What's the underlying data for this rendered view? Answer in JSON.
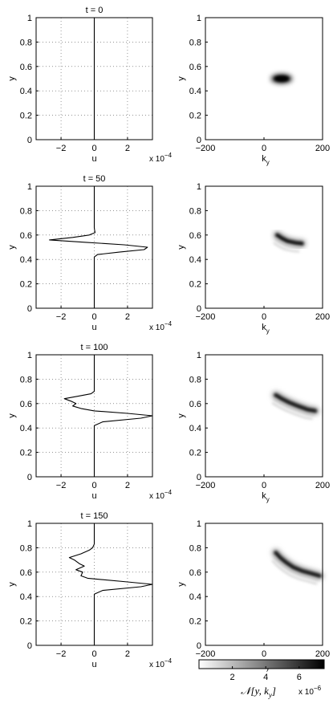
{
  "chart_data": {
    "type": "line",
    "panels": [
      {
        "title": "t = 0",
        "profile": {
          "type": "line",
          "xlabel": "u",
          "ylabel": "y",
          "x_multiplier": "x 10^-4",
          "xlim": [
            -3.5,
            3.5
          ],
          "ylim": [
            0,
            1
          ],
          "grid": true,
          "xticks": [
            -2,
            0,
            2
          ],
          "yticks": [
            0,
            0.2,
            0.4,
            0.6,
            0.8,
            1
          ],
          "y": [
            0,
            0.1,
            0.2,
            0.3,
            0.4,
            0.5,
            0.6,
            0.7,
            0.8,
            0.9,
            1.0
          ],
          "x": [
            0,
            0,
            0,
            0,
            0,
            0,
            0,
            0,
            0,
            0,
            0
          ]
        },
        "action": {
          "type": "heatmap",
          "xlabel": "k_y",
          "ylabel": "y",
          "xlim": [
            -200,
            200
          ],
          "ylim": [
            0,
            1
          ],
          "xticks": [
            -200,
            0,
            200
          ],
          "yticks": [
            0,
            0.2,
            0.4,
            0.6,
            0.8,
            1
          ],
          "ridge_points": [
            [
              45,
              0.5
            ],
            [
              60,
              0.5
            ],
            [
              75,
              0.5
            ]
          ],
          "peak_level": 1.0
        }
      },
      {
        "title": "t = 50",
        "profile": {
          "type": "line",
          "xlabel": "u",
          "ylabel": "y",
          "x_multiplier": "x 10^-4",
          "xlim": [
            -3.5,
            3.5
          ],
          "ylim": [
            0,
            1
          ],
          "grid": true,
          "xticks": [
            -2,
            0,
            2
          ],
          "yticks": [
            0,
            0.2,
            0.4,
            0.6,
            0.8,
            1
          ],
          "y": [
            0,
            0.42,
            0.44,
            0.46,
            0.48,
            0.5,
            0.52,
            0.54,
            0.56,
            0.58,
            0.6,
            0.62,
            0.64,
            0.66,
            1.0
          ],
          "x": [
            0,
            0,
            0.2,
            1.5,
            3.0,
            3.2,
            1.8,
            -0.5,
            -2.7,
            -1.3,
            -0.3,
            0.05,
            0.02,
            0,
            0
          ]
        },
        "action": {
          "type": "heatmap",
          "xlabel": "k_y",
          "ylabel": "y",
          "xlim": [
            -200,
            200
          ],
          "ylim": [
            0,
            1
          ],
          "xticks": [
            -200,
            0,
            200
          ],
          "yticks": [
            0,
            0.2,
            0.4,
            0.6,
            0.8,
            1
          ],
          "ridge_points": [
            [
              45,
              0.6
            ],
            [
              60,
              0.575
            ],
            [
              80,
              0.55
            ],
            [
              110,
              0.535
            ],
            [
              130,
              0.53
            ]
          ],
          "peak_level": 0.9
        }
      },
      {
        "title": "t = 100",
        "profile": {
          "type": "line",
          "xlabel": "u",
          "ylabel": "y",
          "x_multiplier": "x 10^-4",
          "xlim": [
            -3.5,
            3.5
          ],
          "ylim": [
            0,
            1
          ],
          "grid": true,
          "xticks": [
            -2,
            0,
            2
          ],
          "yticks": [
            0,
            0.2,
            0.4,
            0.6,
            0.8,
            1
          ],
          "y": [
            0,
            0.42,
            0.45,
            0.48,
            0.5,
            0.52,
            0.54,
            0.56,
            0.58,
            0.6,
            0.62,
            0.64,
            0.66,
            0.68,
            0.7,
            1.0
          ],
          "x": [
            0,
            0,
            0.5,
            2.8,
            3.5,
            2.0,
            0,
            -0.8,
            -1.3,
            -1.1,
            -1.4,
            -1.8,
            -1.0,
            -0.2,
            0,
            0
          ]
        },
        "action": {
          "type": "heatmap",
          "xlabel": "k_y",
          "ylabel": "y",
          "xlim": [
            -200,
            200
          ],
          "ylim": [
            0,
            1
          ],
          "xticks": [
            -200,
            0,
            200
          ],
          "yticks": [
            0,
            0.2,
            0.4,
            0.6,
            0.8,
            1
          ],
          "ridge_points": [
            [
              40,
              0.67
            ],
            [
              60,
              0.64
            ],
            [
              85,
              0.61
            ],
            [
              115,
              0.58
            ],
            [
              150,
              0.55
            ],
            [
              175,
              0.54
            ]
          ],
          "peak_level": 0.85
        }
      },
      {
        "title": "t = 150",
        "profile": {
          "type": "line",
          "xlabel": "u",
          "ylabel": "y",
          "x_multiplier": "x 10^-4",
          "xlim": [
            -3.5,
            3.5
          ],
          "ylim": [
            0,
            1
          ],
          "grid": true,
          "xticks": [
            -2,
            0,
            2
          ],
          "yticks": [
            0,
            0.2,
            0.4,
            0.6,
            0.8,
            1
          ],
          "y": [
            0,
            0.42,
            0.45,
            0.48,
            0.5,
            0.52,
            0.55,
            0.57,
            0.6,
            0.62,
            0.65,
            0.67,
            0.7,
            0.72,
            0.75,
            0.78,
            0.8,
            0.83,
            1.0
          ],
          "x": [
            0,
            0,
            0.5,
            2.8,
            3.5,
            2.0,
            -0.4,
            -0.8,
            -0.7,
            -1.1,
            -0.6,
            -0.9,
            -1.2,
            -1.5,
            -0.8,
            -0.3,
            -0.1,
            0,
            0
          ]
        },
        "action": {
          "type": "heatmap",
          "xlabel": "k_y",
          "ylabel": "y",
          "xlim": [
            -200,
            200
          ],
          "ylim": [
            0,
            1
          ],
          "xticks": [
            -200,
            0,
            200
          ],
          "yticks": [
            0,
            0.2,
            0.4,
            0.6,
            0.8,
            1
          ],
          "ridge_points": [
            [
              40,
              0.76
            ],
            [
              55,
              0.72
            ],
            [
              75,
              0.68
            ],
            [
              100,
              0.64
            ],
            [
              130,
              0.61
            ],
            [
              160,
              0.59
            ],
            [
              190,
              0.57
            ]
          ],
          "peak_level": 0.85
        }
      }
    ],
    "colorbar": {
      "min": 0,
      "max": 7.5,
      "ticks": [
        2,
        4,
        6
      ],
      "label": "N[y, k_y] x 10^-6",
      "colormap": "gray_reversed"
    }
  }
}
